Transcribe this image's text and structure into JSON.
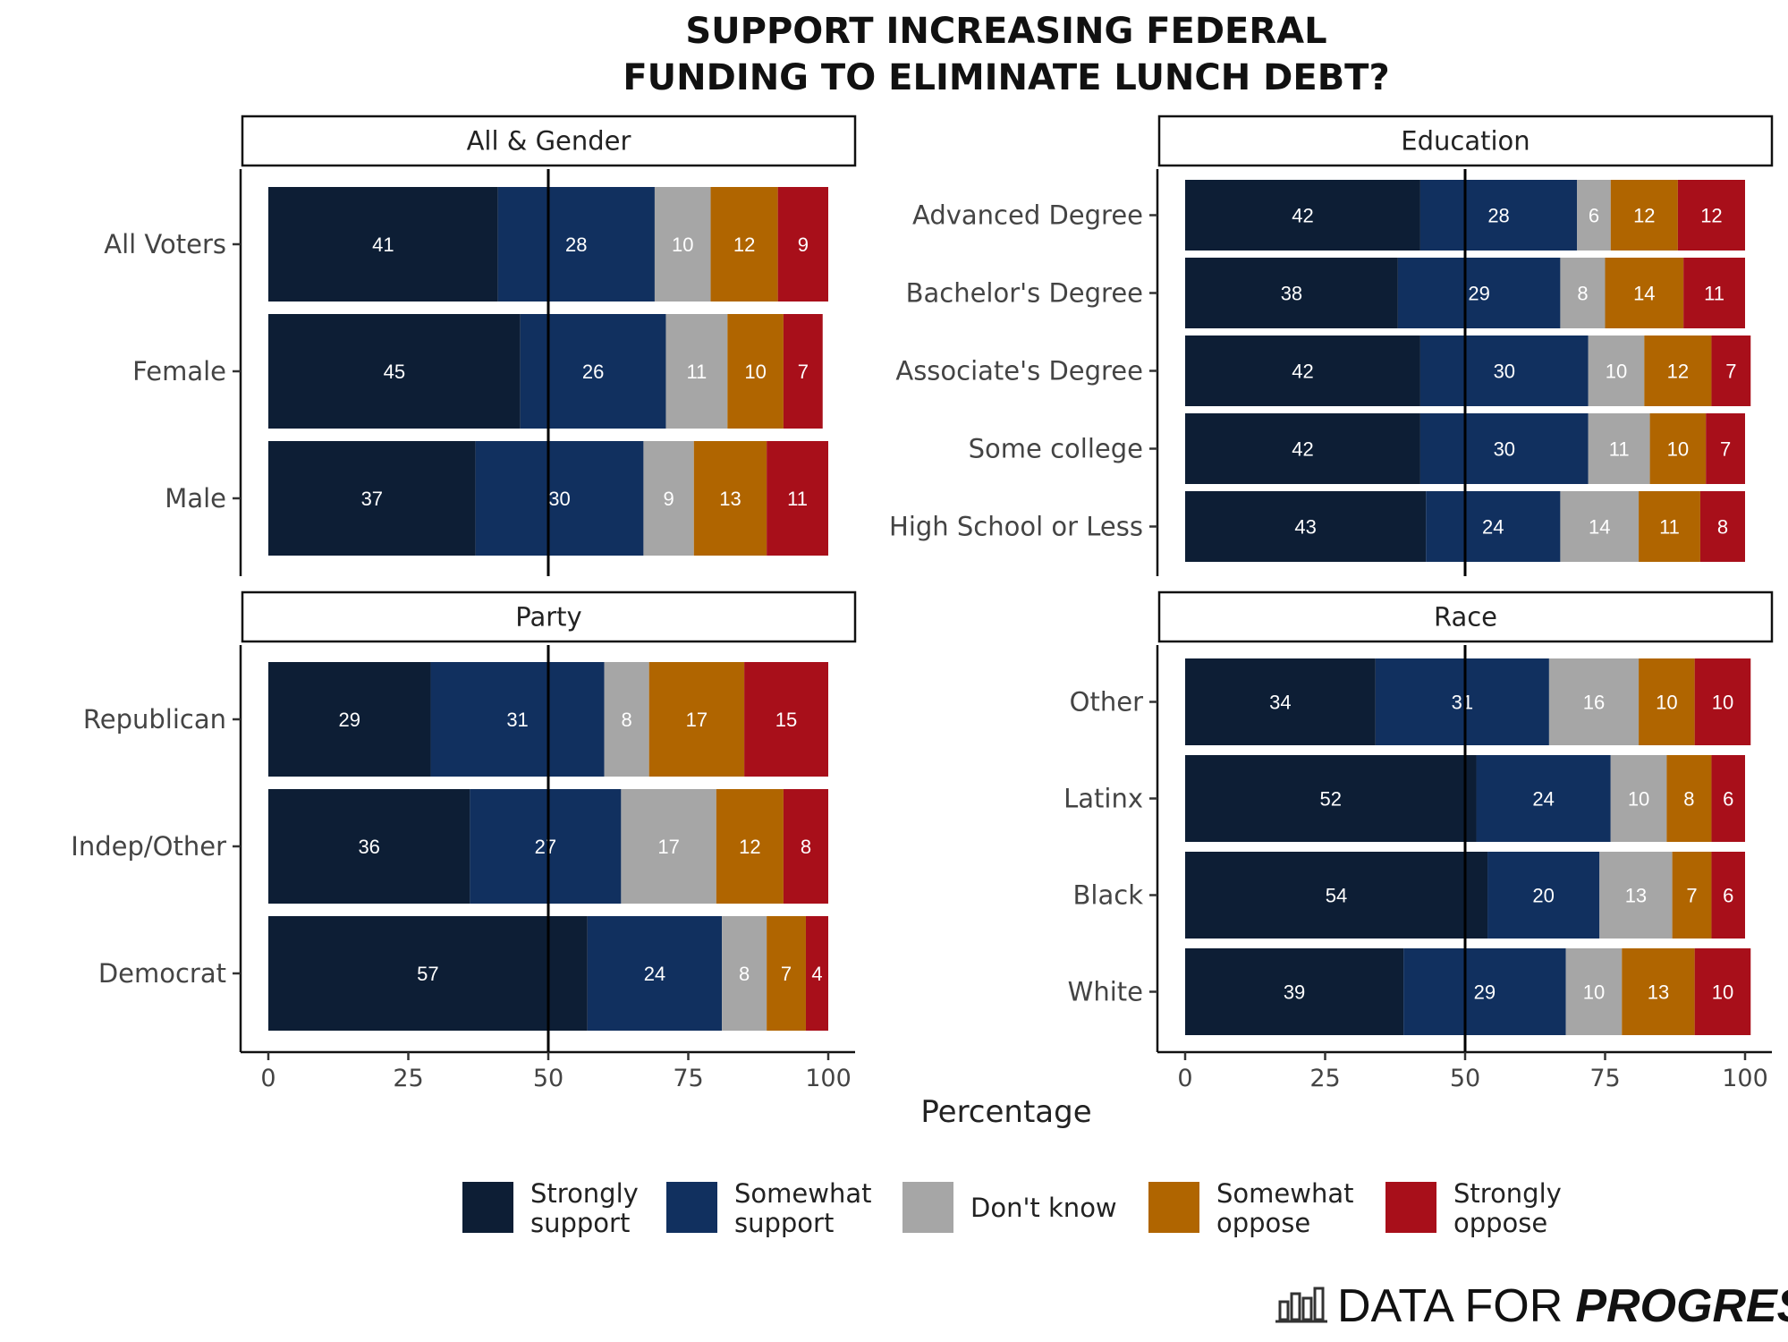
{
  "chart_data": {
    "type": "bar",
    "orientation": "horizontal-stacked",
    "title_lines": [
      "SUPPORT INCREASING FEDERAL",
      "FUNDING TO ELIMINATE LUNCH DEBT?"
    ],
    "xlabel": "Percentage",
    "xlim": [
      0,
      100
    ],
    "xticks": [
      0,
      25,
      50,
      75,
      100
    ],
    "reference_line": 50,
    "legend_position": "bottom",
    "series": [
      {
        "name": "Strongly support",
        "lines": [
          "Strongly",
          "support"
        ],
        "color": "#0d1e35"
      },
      {
        "name": "Somewhat support",
        "lines": [
          "Somewhat",
          "support"
        ],
        "color": "#11305f"
      },
      {
        "name": "Don't know",
        "lines": [
          "Don't know"
        ],
        "color": "#a6a6a6"
      },
      {
        "name": "Somewhat oppose",
        "lines": [
          "Somewhat",
          "oppose"
        ],
        "color": "#b06500"
      },
      {
        "name": "Strongly oppose",
        "lines": [
          "Strongly",
          "oppose"
        ],
        "color": "#a80f1a"
      }
    ],
    "panels": [
      {
        "name": "All & Gender",
        "categories": [
          "All Voters",
          "Female",
          "Male"
        ],
        "values": [
          [
            41,
            28,
            10,
            12,
            9
          ],
          [
            45,
            26,
            11,
            10,
            7
          ],
          [
            37,
            30,
            9,
            13,
            11
          ]
        ]
      },
      {
        "name": "Education",
        "categories": [
          "Advanced Degree",
          "Bachelor's Degree",
          "Associate's Degree",
          "Some college",
          "High School or Less"
        ],
        "values": [
          [
            42,
            28,
            6,
            12,
            12
          ],
          [
            38,
            29,
            8,
            14,
            11
          ],
          [
            42,
            30,
            10,
            12,
            7
          ],
          [
            42,
            30,
            11,
            10,
            7
          ],
          [
            43,
            24,
            14,
            11,
            8
          ]
        ]
      },
      {
        "name": "Party",
        "categories": [
          "Republican",
          "Indep/Other",
          "Democrat"
        ],
        "values": [
          [
            29,
            31,
            8,
            17,
            15
          ],
          [
            36,
            27,
            17,
            12,
            8
          ],
          [
            57,
            24,
            8,
            7,
            4
          ]
        ]
      },
      {
        "name": "Race",
        "categories": [
          "Other",
          "Latinx",
          "Black",
          "White"
        ],
        "values": [
          [
            34,
            31,
            16,
            10,
            10
          ],
          [
            52,
            24,
            10,
            8,
            6
          ],
          [
            54,
            20,
            13,
            7,
            6
          ],
          [
            39,
            29,
            10,
            13,
            10
          ]
        ]
      }
    ]
  },
  "brand": {
    "light": "DATA FOR",
    "bold": "PROGRESS",
    "icon": "bar-chart-logo-icon"
  }
}
